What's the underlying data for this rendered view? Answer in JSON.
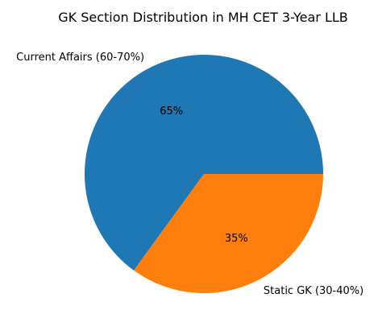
{
  "chart_data": {
    "type": "pie",
    "title": "GK Section Distribution in MH CET 3-Year LLB",
    "slices": [
      {
        "label": "Current Affairs (60-70%)",
        "value": 65,
        "pct_label": "65%",
        "color": "#1f77b4"
      },
      {
        "label": "Static GK (30-40%)",
        "value": 35,
        "pct_label": "35%",
        "color": "#ff7f0e"
      }
    ],
    "start_angle": "0 degrees (3 o'clock), counterclockwise",
    "legend": "none"
  }
}
